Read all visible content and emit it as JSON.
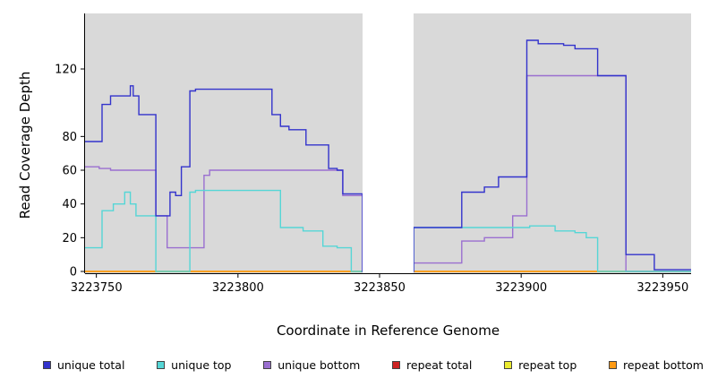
{
  "ylabel": "Read Coverage Depth",
  "xlabel": "Coordinate in Reference Genome",
  "legend": [
    {
      "label": "unique total",
      "color": "#3333cc"
    },
    {
      "label": "unique top",
      "color": "#55d6d6"
    },
    {
      "label": "unique bottom",
      "color": "#9a6fd0"
    },
    {
      "label": "repeat total",
      "color": "#cc2222"
    },
    {
      "label": "repeat top",
      "color": "#ebeb30"
    },
    {
      "label": "repeat bottom",
      "color": "#ff9912"
    }
  ],
  "chart_data": {
    "type": "line",
    "step": true,
    "title": "",
    "xlabel": "Coordinate in Reference Genome",
    "ylabel": "Read Coverage Depth",
    "xlim": [
      3223746,
      3223960
    ],
    "ylim": [
      0,
      150
    ],
    "x_ticks": [
      3223750,
      3223800,
      3223850,
      3223900,
      3223950
    ],
    "y_ticks": [
      0,
      20,
      40,
      60,
      80,
      120
    ],
    "plot_background": "#d9d9d9",
    "gap_region": [
      3223844,
      3223862
    ],
    "legend_position": "bottom",
    "grid": false,
    "series": [
      {
        "name": "repeat total",
        "color": "#cc2222",
        "points": [
          [
            3223746,
            0
          ],
          [
            3223960,
            0
          ]
        ]
      },
      {
        "name": "repeat top",
        "color": "#ebeb30",
        "points": [
          [
            3223746,
            0
          ],
          [
            3223960,
            0
          ]
        ]
      },
      {
        "name": "repeat bottom",
        "color": "#ff9912",
        "points": [
          [
            3223746,
            0
          ],
          [
            3223960,
            0
          ]
        ]
      },
      {
        "name": "unique bottom",
        "color": "#9a6fd0",
        "points": [
          [
            3223746,
            62
          ],
          [
            3223751,
            61
          ],
          [
            3223755,
            60
          ],
          [
            3223770,
            60
          ],
          [
            3223771,
            33
          ],
          [
            3223774,
            33
          ],
          [
            3223775,
            14
          ],
          [
            3223787,
            14
          ],
          [
            3223788,
            57
          ],
          [
            3223790,
            60
          ],
          [
            3223836,
            60
          ],
          [
            3223837,
            45
          ],
          [
            3223843,
            45
          ],
          [
            3223844,
            0
          ],
          [
            3223862,
            5
          ],
          [
            3223879,
            18
          ],
          [
            3223887,
            20
          ],
          [
            3223896,
            20
          ],
          [
            3223897,
            33
          ],
          [
            3223901,
            33
          ],
          [
            3223902,
            116
          ],
          [
            3223936,
            116
          ],
          [
            3223937,
            0
          ],
          [
            3223960,
            0
          ]
        ]
      },
      {
        "name": "unique top",
        "color": "#55d6d6",
        "points": [
          [
            3223746,
            14
          ],
          [
            3223752,
            36
          ],
          [
            3223756,
            40
          ],
          [
            3223760,
            47
          ],
          [
            3223762,
            40
          ],
          [
            3223764,
            33
          ],
          [
            3223770,
            33
          ],
          [
            3223771,
            0
          ],
          [
            3223782,
            0
          ],
          [
            3223783,
            47
          ],
          [
            3223785,
            48
          ],
          [
            3223814,
            48
          ],
          [
            3223815,
            26
          ],
          [
            3223821,
            26
          ],
          [
            3223823,
            24
          ],
          [
            3223829,
            24
          ],
          [
            3223830,
            15
          ],
          [
            3223835,
            14
          ],
          [
            3223839,
            14
          ],
          [
            3223840,
            0
          ],
          [
            3223844,
            0
          ],
          [
            3223862,
            26
          ],
          [
            3223903,
            27
          ],
          [
            3223912,
            24
          ],
          [
            3223919,
            23
          ],
          [
            3223923,
            20
          ],
          [
            3223926,
            20
          ],
          [
            3223927,
            0
          ],
          [
            3223960,
            0
          ]
        ]
      },
      {
        "name": "unique total",
        "color": "#3333cc",
        "points": [
          [
            3223746,
            77
          ],
          [
            3223752,
            99
          ],
          [
            3223755,
            104
          ],
          [
            3223761,
            104
          ],
          [
            3223762,
            110
          ],
          [
            3223763,
            104
          ],
          [
            3223765,
            93
          ],
          [
            3223770,
            93
          ],
          [
            3223771,
            33
          ],
          [
            3223775,
            33
          ],
          [
            3223776,
            47
          ],
          [
            3223778,
            45
          ],
          [
            3223780,
            62
          ],
          [
            3223783,
            107
          ],
          [
            3223785,
            108
          ],
          [
            3223810,
            108
          ],
          [
            3223812,
            93
          ],
          [
            3223815,
            86
          ],
          [
            3223818,
            84
          ],
          [
            3223823,
            84
          ],
          [
            3223824,
            75
          ],
          [
            3223830,
            75
          ],
          [
            3223832,
            61
          ],
          [
            3223835,
            60
          ],
          [
            3223837,
            46
          ],
          [
            3223843,
            46
          ],
          [
            3223844,
            0
          ],
          [
            3223862,
            26
          ],
          [
            3223877,
            26
          ],
          [
            3223879,
            47
          ],
          [
            3223885,
            47
          ],
          [
            3223887,
            50
          ],
          [
            3223891,
            50
          ],
          [
            3223892,
            56
          ],
          [
            3223901,
            56
          ],
          [
            3223902,
            137
          ],
          [
            3223906,
            135
          ],
          [
            3223913,
            135
          ],
          [
            3223915,
            134
          ],
          [
            3223919,
            132
          ],
          [
            3223926,
            132
          ],
          [
            3223927,
            116
          ],
          [
            3223936,
            116
          ],
          [
            3223937,
            10
          ],
          [
            3223946,
            10
          ],
          [
            3223947,
            1
          ],
          [
            3223960,
            1
          ]
        ]
      }
    ]
  }
}
